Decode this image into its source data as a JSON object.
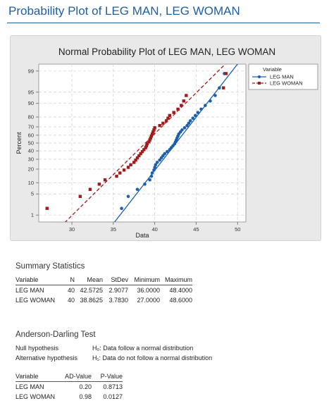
{
  "page": {
    "title": "Probability Plot of LEG MAN, LEG WOMAN"
  },
  "chart_data": {
    "type": "scatter",
    "title": "Normal Probability Plot of LEG MAN, LEG WOMAN",
    "xlabel": "Data",
    "ylabel": "Percent",
    "xlim": [
      26,
      51
    ],
    "x_ticks": [
      30,
      35,
      40,
      45,
      50
    ],
    "y_ticks": [
      1,
      5,
      10,
      20,
      30,
      40,
      50,
      60,
      70,
      80,
      90,
      95,
      99
    ],
    "y_scale": "normal-probability",
    "grid": true,
    "legend": {
      "title": "Variable",
      "position": "right"
    },
    "series": [
      {
        "name": "LEG MAN",
        "color": "#1b5fad",
        "marker": "circle",
        "line": "solid",
        "fit": {
          "mean": 42.5725,
          "stdev": 2.9077
        },
        "x": [
          36.0,
          36.8,
          37.9,
          38.8,
          39.4,
          39.6,
          39.7,
          39.9,
          40.0,
          40.1,
          40.3,
          40.6,
          40.8,
          41.0,
          41.2,
          41.5,
          41.8,
          42.0,
          42.2,
          42.4,
          42.5,
          42.6,
          42.7,
          42.8,
          42.9,
          43.1,
          43.3,
          43.6,
          43.9,
          44.1,
          44.3,
          44.6,
          44.9,
          45.2,
          45.6,
          46.1,
          46.7,
          47.3,
          47.8,
          48.4
        ],
        "y": [
          1.74,
          4.23,
          6.72,
          9.2,
          11.69,
          14.18,
          16.67,
          19.15,
          21.64,
          24.13,
          26.62,
          29.1,
          31.59,
          34.08,
          36.57,
          39.05,
          41.54,
          44.03,
          46.52,
          49.0,
          51.49,
          53.98,
          56.47,
          58.96,
          61.44,
          63.93,
          66.42,
          68.91,
          71.39,
          73.88,
          76.37,
          78.86,
          81.34,
          83.83,
          86.32,
          88.81,
          91.29,
          93.78,
          96.27,
          98.76
        ]
      },
      {
        "name": "LEG WOMAN",
        "color": "#a01c1c",
        "marker": "square",
        "line": "dashed",
        "fit": {
          "mean": 38.8625,
          "stdev": 3.783
        },
        "x": [
          27.0,
          31.0,
          32.2,
          33.3,
          34.0,
          35.4,
          35.8,
          36.3,
          36.8,
          37.1,
          37.5,
          37.7,
          37.9,
          38.1,
          38.3,
          38.5,
          38.7,
          38.9,
          39.0,
          39.1,
          39.3,
          39.4,
          39.5,
          39.6,
          39.7,
          39.8,
          39.9,
          40.0,
          40.6,
          41.0,
          41.4,
          41.6,
          41.8,
          42.3,
          42.8,
          43.2,
          43.5,
          43.8,
          48.3,
          48.6
        ],
        "y": [
          1.74,
          4.23,
          6.72,
          9.2,
          11.69,
          14.18,
          16.67,
          19.15,
          21.64,
          24.13,
          26.62,
          29.1,
          31.59,
          34.08,
          36.57,
          39.05,
          41.54,
          44.03,
          46.52,
          49.0,
          51.49,
          53.98,
          56.47,
          58.96,
          61.44,
          63.93,
          66.42,
          68.91,
          71.39,
          73.88,
          76.37,
          78.86,
          81.34,
          83.83,
          86.32,
          88.81,
          91.29,
          93.78,
          96.27,
          98.76
        ]
      }
    ]
  },
  "summary": {
    "heading": "Summary Statistics",
    "columns": [
      "Variable",
      "N",
      "Mean",
      "StDev",
      "Minimum",
      "Maximum"
    ],
    "rows": [
      [
        "LEG MAN",
        "40",
        "42.5725",
        "2.9077",
        "36.0000",
        "48.4000"
      ],
      [
        "LEG WOMAN",
        "40",
        "38.8625",
        "3.7830",
        "27.0000",
        "48.6000"
      ]
    ]
  },
  "ad_test": {
    "heading": "Anderson-Darling Test",
    "null_label": "Null hypothesis",
    "null_text": "H₀: Data follow a normal distribution",
    "alt_label": "Alternative hypothesis",
    "alt_text": "H₁: Data do not follow a normal distribution",
    "columns": [
      "Variable",
      "AD-Value",
      "P-Value"
    ],
    "rows": [
      [
        "LEG MAN",
        "0.20",
        "0.8713"
      ],
      [
        "LEG WOMAN",
        "0.98",
        "0.0127"
      ]
    ]
  }
}
